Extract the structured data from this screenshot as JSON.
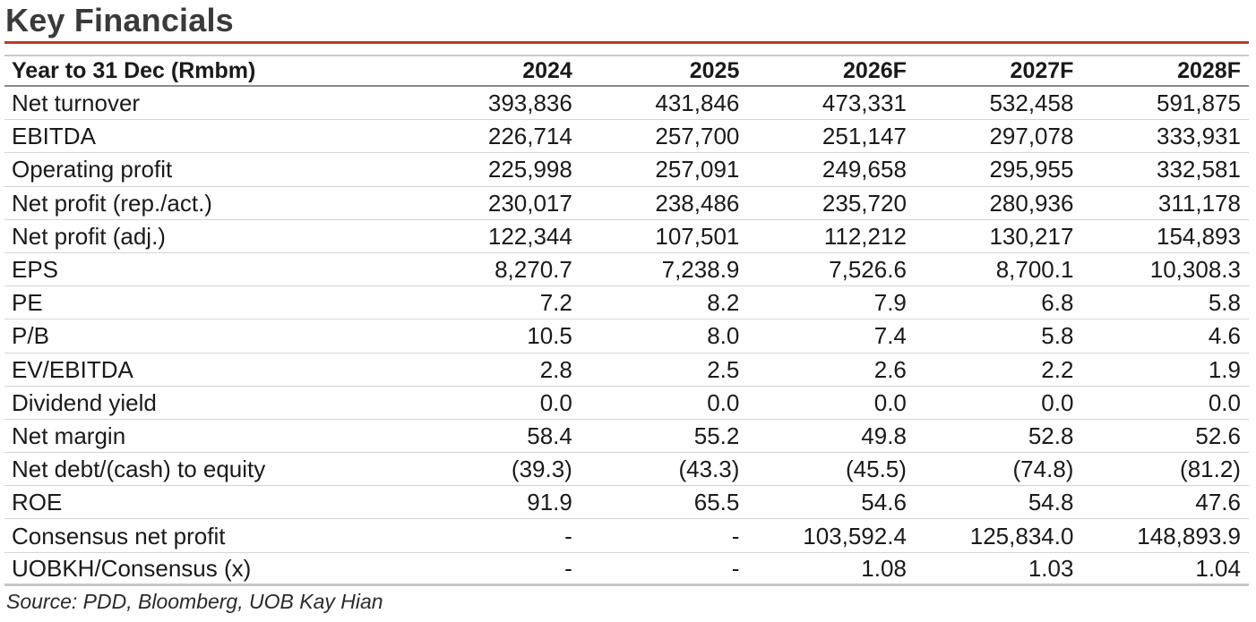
{
  "title": "Key Financials",
  "table": {
    "header": [
      "Year to 31 Dec (Rmbm)",
      "2024",
      "2025",
      "2026F",
      "2027F",
      "2028F"
    ],
    "rows": [
      [
        "Net turnover",
        "393,836",
        "431,846",
        "473,331",
        "532,458",
        "591,875"
      ],
      [
        "EBITDA",
        "226,714",
        "257,700",
        "251,147",
        "297,078",
        "333,931"
      ],
      [
        "Operating profit",
        "225,998",
        "257,091",
        "249,658",
        "295,955",
        "332,581"
      ],
      [
        "Net profit (rep./act.)",
        "230,017",
        "238,486",
        "235,720",
        "280,936",
        "311,178"
      ],
      [
        "Net profit (adj.)",
        "122,344",
        "107,501",
        "112,212",
        "130,217",
        "154,893"
      ],
      [
        "EPS",
        "8,270.7",
        "7,238.9",
        "7,526.6",
        "8,700.1",
        "10,308.3"
      ],
      [
        "PE",
        "7.2",
        "8.2",
        "7.9",
        "6.8",
        "5.8"
      ],
      [
        "P/B",
        "10.5",
        "8.0",
        "7.4",
        "5.8",
        "4.6"
      ],
      [
        "EV/EBITDA",
        "2.8",
        "2.5",
        "2.6",
        "2.2",
        "1.9"
      ],
      [
        "Dividend yield",
        "0.0",
        "0.0",
        "0.0",
        "0.0",
        "0.0"
      ],
      [
        "Net margin",
        "58.4",
        "55.2",
        "49.8",
        "52.8",
        "52.6"
      ],
      [
        "Net debt/(cash) to equity",
        "(39.3)",
        "(43.3)",
        "(45.5)",
        "(74.8)",
        "(81.2)"
      ],
      [
        "ROE",
        "91.9",
        "65.5",
        "54.6",
        "54.8",
        "47.6"
      ],
      [
        "Consensus net profit",
        "-",
        "-",
        "103,592.4",
        "125,834.0",
        "148,893.9"
      ],
      [
        "UOBKH/Consensus (x)",
        "-",
        "-",
        "1.08",
        "1.03",
        "1.04"
      ]
    ]
  },
  "source": "Source: PDD, Bloomberg, UOB Kay Hian",
  "colors": {
    "title_rule": "#c0392b",
    "title_text": "#3a3a3a"
  }
}
